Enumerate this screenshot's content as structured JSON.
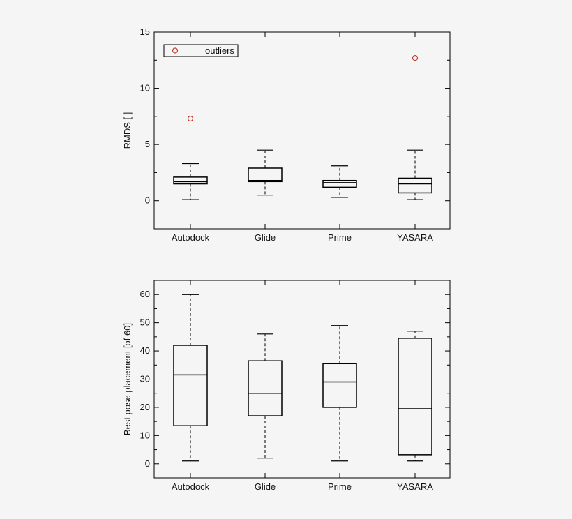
{
  "chart_data": [
    {
      "type": "box",
      "title": "",
      "ylabel": "RMDS [  ]",
      "xlabel": "",
      "ylim": [
        -2.5,
        15
      ],
      "yticks": [
        0,
        5,
        10,
        15
      ],
      "grid": false,
      "legend": {
        "position": "top-left",
        "label": "outliers"
      },
      "categories": [
        "Autodock",
        "Glide",
        "Prime",
        "YASARA"
      ],
      "boxes": [
        {
          "category": "Autodock",
          "min": 0.1,
          "q1": 1.5,
          "median": 1.7,
          "q3": 2.1,
          "max": 3.3,
          "outliers": [
            7.3
          ]
        },
        {
          "category": "Glide",
          "min": 0.5,
          "q1": 1.7,
          "median": 1.8,
          "q3": 2.9,
          "max": 4.5,
          "outliers": []
        },
        {
          "category": "Prime",
          "min": 0.3,
          "q1": 1.2,
          "median": 1.6,
          "q3": 1.8,
          "max": 3.1,
          "outliers": []
        },
        {
          "category": "YASARA",
          "min": 0.1,
          "q1": 0.7,
          "median": 1.5,
          "q3": 2.0,
          "max": 4.5,
          "outliers": [
            12.7
          ]
        }
      ],
      "colors": {
        "outlier": "#c0392b",
        "box": "#000000"
      }
    },
    {
      "type": "box",
      "title": "",
      "ylabel": "Best pose placement [of 60]",
      "xlabel": "",
      "ylim": [
        -5,
        65
      ],
      "yticks": [
        0,
        10,
        20,
        30,
        40,
        50,
        60
      ],
      "grid": false,
      "categories": [
        "Autodock",
        "Glide",
        "Prime",
        "YASARA"
      ],
      "boxes": [
        {
          "category": "Autodock",
          "min": 1,
          "q1": 13.5,
          "median": 31.5,
          "q3": 42,
          "max": 60,
          "outliers": []
        },
        {
          "category": "Glide",
          "min": 2,
          "q1": 17,
          "median": 25,
          "q3": 36.5,
          "max": 46,
          "outliers": []
        },
        {
          "category": "Prime",
          "min": 1,
          "q1": 20,
          "median": 29,
          "q3": 35.5,
          "max": 49,
          "outliers": []
        },
        {
          "category": "YASARA",
          "min": 1,
          "q1": 3.2,
          "median": 19.5,
          "q3": 44.5,
          "max": 47,
          "outliers": []
        }
      ],
      "colors": {
        "box": "#000000"
      }
    }
  ]
}
